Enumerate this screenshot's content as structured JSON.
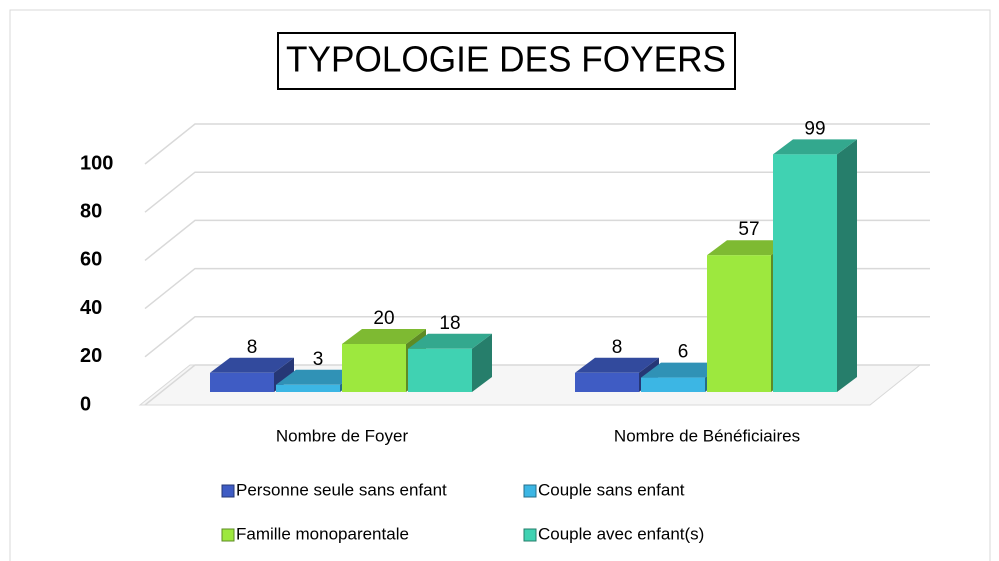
{
  "chart_data": {
    "type": "bar3d",
    "title": "TYPOLOGIE DES FOYERS",
    "categories": [
      "Nombre de Foyer",
      "Nombre de Bénéficiaires"
    ],
    "series": [
      {
        "name": "Personne seule sans enfant",
        "color": "#3f5cc4",
        "values": [
          8,
          8
        ]
      },
      {
        "name": "Couple sans enfant",
        "color": "#3cb6e4",
        "values": [
          3,
          6
        ]
      },
      {
        "name": "Famille monoparentale",
        "color": "#9de83e",
        "values": [
          20,
          57
        ]
      },
      {
        "name": "Couple avec enfant(s)",
        "color": "#40d2b2",
        "values": [
          18,
          99
        ]
      }
    ],
    "ylim": [
      0,
      100
    ],
    "yticks": [
      0,
      20,
      40,
      60,
      80,
      100
    ],
    "grid": true,
    "legend": "bottom"
  }
}
